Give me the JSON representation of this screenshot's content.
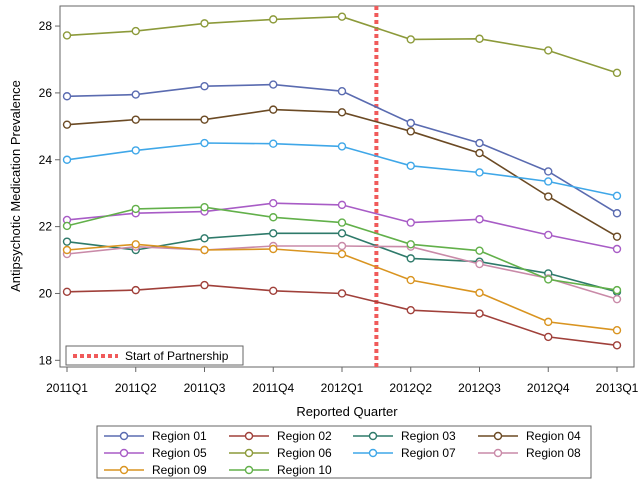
{
  "chart_data": {
    "type": "line",
    "title": "",
    "xlabel": "Reported Quarter",
    "ylabel": "Antipsychotic Medication Prevalence",
    "categories": [
      "2011Q1",
      "2011Q2",
      "2011Q3",
      "2011Q4",
      "2012Q1",
      "2012Q2",
      "2012Q3",
      "2012Q4",
      "2013Q1"
    ],
    "ylim": [
      17.8,
      28.6
    ],
    "yticks": [
      18,
      20,
      22,
      24,
      26,
      28
    ],
    "grid": false,
    "series": [
      {
        "name": "Region 01",
        "color": "#5a6bb0",
        "values": [
          25.9,
          25.95,
          26.2,
          26.25,
          26.05,
          25.1,
          24.5,
          23.65,
          22.4
        ]
      },
      {
        "name": "Region 02",
        "color": "#a0403a",
        "values": [
          20.05,
          20.1,
          20.25,
          20.08,
          20.0,
          19.5,
          19.4,
          18.7,
          18.45
        ]
      },
      {
        "name": "Region 03",
        "color": "#2e7a6a",
        "values": [
          21.55,
          21.3,
          21.65,
          21.8,
          21.8,
          21.05,
          20.95,
          20.6,
          20.05
        ]
      },
      {
        "name": "Region 04",
        "color": "#6b4a24",
        "values": [
          25.05,
          25.2,
          25.2,
          25.5,
          25.42,
          24.85,
          24.2,
          22.9,
          21.7
        ]
      },
      {
        "name": "Region 05",
        "color": "#a85cc6",
        "values": [
          22.2,
          22.4,
          22.45,
          22.7,
          22.65,
          22.12,
          22.22,
          21.75,
          21.33
        ]
      },
      {
        "name": "Region 06",
        "color": "#8c9a3a",
        "values": [
          27.72,
          27.85,
          28.08,
          28.2,
          28.28,
          27.6,
          27.62,
          27.27,
          26.6
        ]
      },
      {
        "name": "Region 07",
        "color": "#3fa7e8",
        "values": [
          24.0,
          24.28,
          24.5,
          24.48,
          24.4,
          23.82,
          23.62,
          23.35,
          22.92
        ]
      },
      {
        "name": "Region 08",
        "color": "#c98aa8",
        "values": [
          21.18,
          21.4,
          21.3,
          21.42,
          21.42,
          21.4,
          20.88,
          20.45,
          19.83
        ]
      },
      {
        "name": "Region 09",
        "color": "#d99420",
        "values": [
          21.3,
          21.47,
          21.3,
          21.33,
          21.18,
          20.4,
          20.02,
          19.15,
          18.9
        ]
      },
      {
        "name": "Region 10",
        "color": "#62b04a",
        "values": [
          22.02,
          22.53,
          22.58,
          22.28,
          22.12,
          21.47,
          21.28,
          20.42,
          20.1
        ]
      }
    ],
    "reference_line": {
      "label": "Start of Partnership",
      "x_value": 4.5,
      "color": "#f05a5a"
    }
  }
}
